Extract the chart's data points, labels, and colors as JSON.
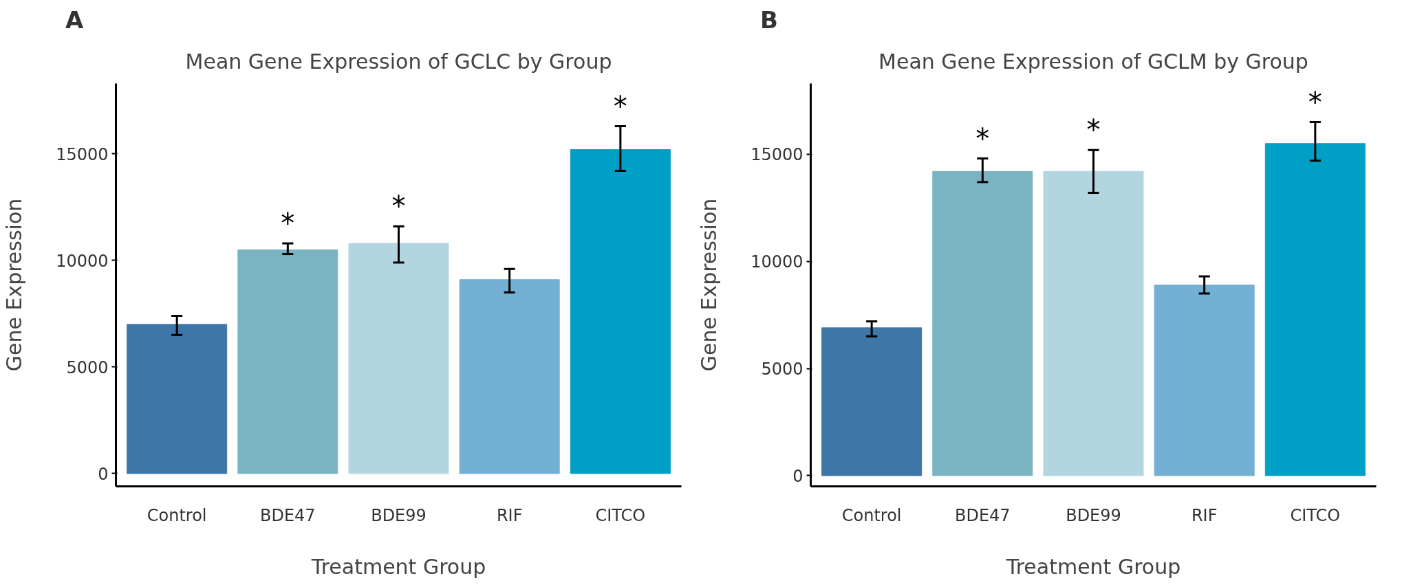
{
  "chart_data": [
    {
      "type": "bar",
      "title": "Mean Gene Expression of GCLC by Group",
      "xlabel": "Treatment Group",
      "ylabel": "Gene Expression",
      "categories": [
        "Control",
        "BDE47",
        "BDE99",
        "RIF",
        "CITCO"
      ],
      "values": [
        7000,
        10500,
        10800,
        9100,
        15200
      ],
      "errors": [
        [
          6500,
          7400
        ],
        [
          10300,
          10800
        ],
        [
          9900,
          11600
        ],
        [
          8500,
          9600
        ],
        [
          14200,
          16300
        ]
      ],
      "colors": [
        "#3f76a8",
        "#7ab4c3",
        "#b3d5df",
        "#73b0d3",
        "#00a0c6"
      ],
      "value_labels": [
        null,
        "*",
        "*",
        null,
        "*"
      ],
      "ylim": [
        -600,
        18300
      ],
      "yticks": [
        0,
        5000,
        10000,
        15000
      ],
      "grid": false,
      "annotations": [
        "A"
      ]
    },
    {
      "type": "bar",
      "title": "Mean Gene Expression of GCLM by Group",
      "xlabel": "Treatment Group",
      "ylabel": "Gene Expression",
      "categories": [
        "Control",
        "BDE47",
        "BDE99",
        "RIF",
        "CITCO"
      ],
      "values": [
        6900,
        14200,
        14200,
        8900,
        15500
      ],
      "errors": [
        [
          6500,
          7200
        ],
        [
          13700,
          14800
        ],
        [
          13200,
          15200
        ],
        [
          8500,
          9300
        ],
        [
          14700,
          16500
        ]
      ],
      "colors": [
        "#3f76a8",
        "#7ab4c3",
        "#b3d5df",
        "#73b0d3",
        "#00a0c6"
      ],
      "value_labels": [
        null,
        "*",
        "*",
        null,
        "*"
      ],
      "ylim": [
        -500,
        18300
      ],
      "yticks": [
        0,
        5000,
        10000,
        15000
      ],
      "grid": false,
      "annotations": [
        "B"
      ]
    }
  ]
}
